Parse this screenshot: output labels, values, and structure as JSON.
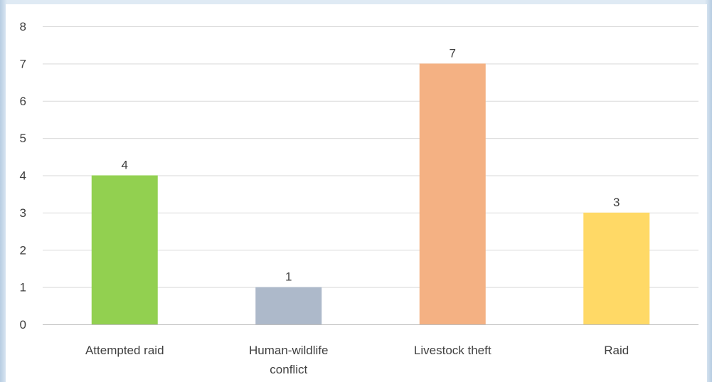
{
  "chart_data": {
    "type": "bar",
    "categories": [
      [
        "Attempted raid"
      ],
      [
        "Human-wildlife",
        "conflict"
      ],
      [
        "Livestock theft"
      ],
      [
        "Raid"
      ]
    ],
    "values": [
      4,
      1,
      7,
      3
    ],
    "data_labels": [
      "4",
      "1",
      "7",
      "3"
    ],
    "bar_colors": [
      "#92d050",
      "#adb9ca",
      "#f4b183",
      "#ffd966"
    ],
    "y_ticks": [
      "0",
      "1",
      "2",
      "3",
      "4",
      "5",
      "6",
      "7",
      "8"
    ],
    "ylim": [
      0,
      8
    ],
    "grid": true,
    "legend": "none",
    "title": "",
    "xlabel": "",
    "ylabel": ""
  }
}
